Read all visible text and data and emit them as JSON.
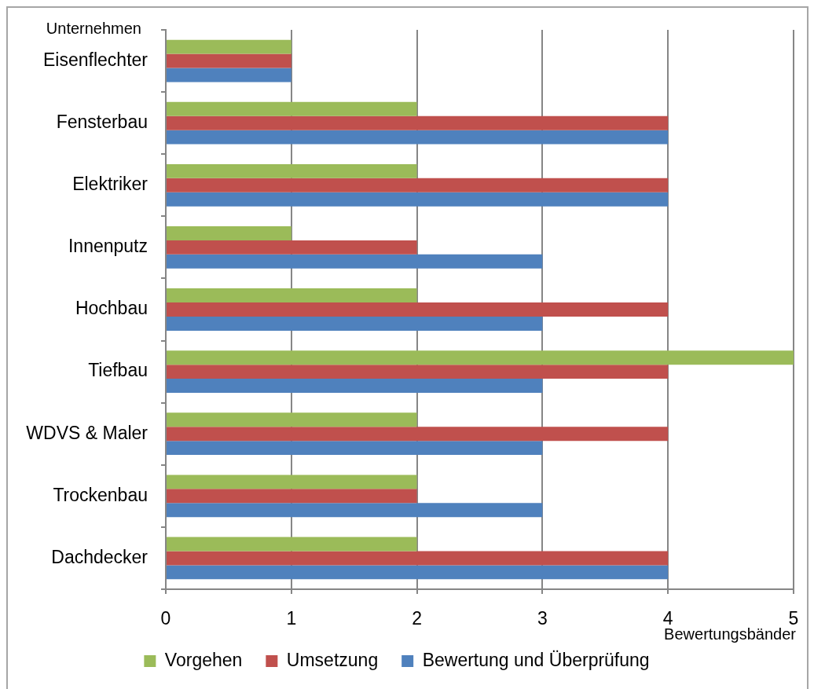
{
  "chart_data": {
    "type": "bar",
    "orientation": "horizontal",
    "xlabel": "Bewertungsbänder",
    "ylabel": "Unternehmen",
    "categories": [
      "Eisenflechter",
      "Fensterbau",
      "Elektriker",
      "Innenputz",
      "Hochbau",
      "Tiefbau",
      "WDVS & Maler",
      "Trockenbau",
      "Dachdecker"
    ],
    "series": [
      {
        "name": "Vorgehen",
        "color": "#9bbb59",
        "values": [
          1,
          2,
          2,
          1,
          2,
          5,
          2,
          2,
          2
        ]
      },
      {
        "name": "Umsetzung",
        "color": "#c0504d",
        "values": [
          1,
          4,
          4,
          2,
          4,
          4,
          4,
          2,
          4
        ]
      },
      {
        "name": "Bewertung und Überprüfung",
        "color": "#4f81bd",
        "values": [
          1,
          4,
          4,
          3,
          3,
          3,
          3,
          3,
          4
        ]
      }
    ],
    "xlim": [
      0,
      5
    ],
    "xticks": [
      0,
      1,
      2,
      3,
      4,
      5
    ],
    "grid": "x",
    "legend": "bottom"
  }
}
